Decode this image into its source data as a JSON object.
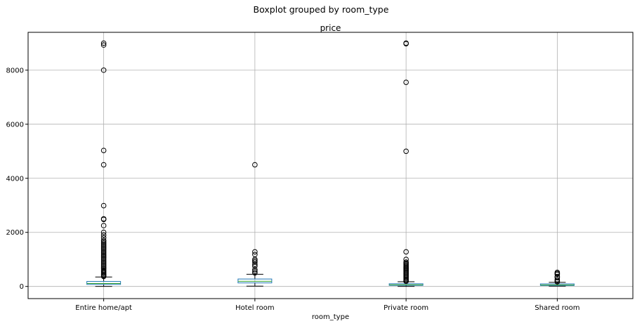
{
  "chart_data": {
    "type": "boxplot",
    "suptitle": "Boxplot grouped by room_type",
    "title": "price",
    "xlabel": "room_type",
    "ylabel": "",
    "ylim": [
      -450,
      9400
    ],
    "yticks": [
      0,
      2000,
      4000,
      6000,
      8000
    ],
    "grid": true,
    "categories": [
      "Entire home/apt",
      "Hotel room",
      "Private room",
      "Shared room"
    ],
    "boxes": [
      {
        "label": "Entire home/apt",
        "whisker_low": 0,
        "q1": 75,
        "median": 110,
        "q3": 185,
        "whisker_high": 350,
        "outliers": [
          9000,
          8930,
          8000,
          5030,
          4500,
          2990,
          2500,
          2480,
          2250,
          2000,
          1900,
          1800,
          1700,
          1650,
          1600,
          1550,
          1500,
          1450,
          1400,
          1350,
          1300,
          1250,
          1200,
          1150,
          1100,
          1050,
          1000,
          950,
          900,
          850,
          800,
          750,
          700,
          650,
          600,
          560,
          520,
          480,
          440,
          400,
          370
        ]
      },
      {
        "label": "Hotel room",
        "whisker_low": 10,
        "q1": 130,
        "median": 190,
        "q3": 275,
        "whisker_high": 450,
        "outliers": [
          4500,
          1280,
          1180,
          1000,
          950,
          900,
          820,
          750,
          620,
          560,
          500
        ]
      },
      {
        "label": "Private room",
        "whisker_low": 0,
        "q1": 40,
        "median": 60,
        "q3": 100,
        "whisker_high": 175,
        "outliers": [
          9000,
          8980,
          7550,
          5000,
          1280,
          1000,
          900,
          860,
          820,
          780,
          740,
          700,
          660,
          620,
          580,
          540,
          500,
          460,
          420,
          380,
          340,
          300,
          260,
          220,
          190
        ]
      },
      {
        "label": "Shared room",
        "whisker_low": 10,
        "q1": 35,
        "median": 55,
        "q3": 95,
        "whisker_high": 150,
        "outliers": [
          520,
          480,
          450,
          360,
          330,
          250,
          200,
          170
        ]
      }
    ]
  },
  "colors": {
    "box": "#1f77b4",
    "median": "#2ca02c",
    "whisker": "#000000",
    "outlier_edge": "#000000",
    "grid": "#b0b0b0"
  }
}
